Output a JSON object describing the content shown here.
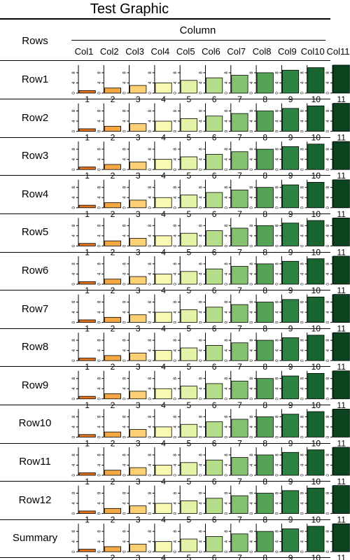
{
  "title": "Test Graphic",
  "rows_header": "Rows",
  "column_header": "Column",
  "column_labels": [
    "Col1",
    "Col2",
    "Col3",
    "Col4",
    "Col5",
    "Col6",
    "Col7",
    "Col8",
    "Col9",
    "Col10",
    "Col11"
  ],
  "colors": [
    "#E4731D",
    "#F4A843",
    "#FCD175",
    "#F8FAB4",
    "#E2F3A8",
    "#B6DE8A",
    "#84C26F",
    "#55A355",
    "#2D8344",
    "#18652F",
    "#0A4520"
  ],
  "chart_data": {
    "type": "bar",
    "title": "Test Graphic",
    "xlabel": "Column",
    "ylabel": "Rows",
    "ylim": [
      0,
      11
    ],
    "y_ticks": [
      0,
      4,
      8
    ],
    "categories": [
      "1",
      "2",
      "3",
      "4",
      "5",
      "6",
      "7",
      "8",
      "9",
      "10",
      "11"
    ],
    "series": [
      {
        "name": "Row1",
        "values": [
          1,
          2,
          3,
          4,
          5,
          6,
          7,
          8,
          9,
          10,
          11
        ]
      },
      {
        "name": "Row2",
        "values": [
          1,
          2,
          3,
          4,
          5,
          6,
          7,
          8,
          9,
          10,
          11
        ]
      },
      {
        "name": "Row3",
        "values": [
          1,
          2,
          3,
          4,
          5,
          6,
          7,
          8,
          9,
          10,
          11
        ]
      },
      {
        "name": "Row4",
        "values": [
          1,
          2,
          3,
          4,
          5,
          6,
          7,
          8,
          9,
          10,
          11
        ]
      },
      {
        "name": "Row5",
        "values": [
          1,
          2,
          3,
          4,
          5,
          6,
          7,
          8,
          9,
          10,
          11
        ]
      },
      {
        "name": "Row6",
        "values": [
          1,
          2,
          3,
          4,
          5,
          6,
          7,
          8,
          9,
          10,
          11
        ]
      },
      {
        "name": "Row7",
        "values": [
          1,
          2,
          3,
          4,
          5,
          6,
          7,
          8,
          9,
          10,
          11
        ]
      },
      {
        "name": "Row8",
        "values": [
          1,
          2,
          3,
          4,
          5,
          6,
          7,
          8,
          9,
          10,
          11
        ]
      },
      {
        "name": "Row9",
        "values": [
          1,
          2,
          3,
          4,
          5,
          6,
          7,
          8,
          9,
          10,
          11
        ]
      },
      {
        "name": "Row10",
        "values": [
          1,
          2,
          3,
          4,
          5,
          6,
          7,
          8,
          9,
          10,
          11
        ]
      },
      {
        "name": "Row11",
        "values": [
          1,
          2,
          3,
          4,
          5,
          6,
          7,
          8,
          9,
          10,
          11
        ]
      },
      {
        "name": "Row12",
        "values": [
          1,
          2,
          3,
          4,
          5,
          6,
          7,
          8,
          9,
          10,
          11
        ]
      },
      {
        "name": "Summary",
        "values": [
          1,
          2,
          3,
          4,
          5,
          6,
          7,
          8,
          9,
          10,
          11
        ]
      }
    ]
  }
}
